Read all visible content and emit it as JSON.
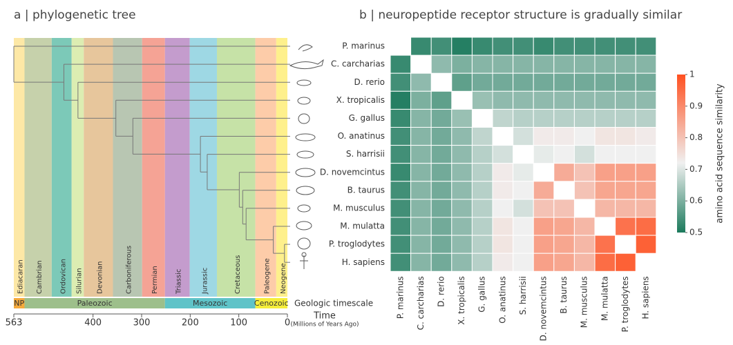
{
  "chart_data": [
    {
      "type": "phylogeny",
      "title": "a | phylogenetic tree",
      "xlabel": "Time",
      "xlabel_note": "(Millions of Years Ago)",
      "xlim": [
        563,
        0
      ],
      "xticks": [
        563,
        400,
        300,
        200,
        100,
        0
      ],
      "divergence_ages": [
        563,
        460,
        431,
        353,
        318,
        179,
        165,
        99,
        92,
        85,
        29,
        6
      ],
      "periods": [
        {
          "name": "Ediacaran",
          "start": 563,
          "end": 541,
          "color": "#fde8a6"
        },
        {
          "name": "Cambrian",
          "start": 541,
          "end": 485,
          "color": "#c6d1ab"
        },
        {
          "name": "Ordovican",
          "start": 485,
          "end": 444,
          "color": "#7cc9b8"
        },
        {
          "name": "Silurian",
          "start": 444,
          "end": 419,
          "color": "#dcedb2"
        },
        {
          "name": "Devonian",
          "start": 419,
          "end": 359,
          "color": "#e7c69c"
        },
        {
          "name": "Carboniferous",
          "start": 359,
          "end": 299,
          "color": "#b8c6b2"
        },
        {
          "name": "Permian",
          "start": 299,
          "end": 252,
          "color": "#f5a395"
        },
        {
          "name": "Triassic",
          "start": 252,
          "end": 201,
          "color": "#c49ccd"
        },
        {
          "name": "Jurassic",
          "start": 201,
          "end": 145,
          "color": "#9ed8e4"
        },
        {
          "name": "Cretaceous",
          "start": 145,
          "end": 66,
          "color": "#c6e2a7"
        },
        {
          "name": "Paleogene",
          "start": 66,
          "end": 23,
          "color": "#fdcca9"
        },
        {
          "name": "Neogene",
          "start": 23,
          "end": 0,
          "color": "#fef08c"
        }
      ],
      "eras_label": "Geologic timescale",
      "eras": [
        {
          "name": "NP",
          "start": 563,
          "end": 541,
          "color": "#f5a93b"
        },
        {
          "name": "Paleozoic",
          "start": 541,
          "end": 252,
          "color": "#9dbf8b"
        },
        {
          "name": "Mesozoic",
          "start": 252,
          "end": 66,
          "color": "#5fc3c8"
        },
        {
          "name": "Cenozoic",
          "start": 66,
          "end": 0,
          "color": "#f5ee3a"
        }
      ]
    },
    {
      "type": "heatmap",
      "title": "b | neuropeptide receptor structure is gradually similar",
      "categories": [
        "P. marinus",
        "C. carcharias",
        "D. rerio",
        "X. tropicalis",
        "G. gallus",
        "O. anatinus",
        "S. harrisii",
        "D. novemcintus",
        "B. taurus",
        "M. musculus",
        "M. mulatta",
        "P. troglodytes",
        "H. sapiens"
      ],
      "values": [
        [
          null,
          0.53,
          0.54,
          0.51,
          0.53,
          0.54,
          0.54,
          0.53,
          0.54,
          0.54,
          0.54,
          0.54,
          0.54
        ],
        [
          0.53,
          null,
          0.62,
          0.6,
          0.61,
          0.61,
          0.61,
          0.61,
          0.61,
          0.61,
          0.61,
          0.61,
          0.61
        ],
        [
          0.54,
          0.62,
          null,
          0.57,
          0.59,
          0.59,
          0.59,
          0.59,
          0.59,
          0.59,
          0.59,
          0.59,
          0.59
        ],
        [
          0.51,
          0.6,
          0.57,
          null,
          0.63,
          0.62,
          0.62,
          0.62,
          0.62,
          0.62,
          0.62,
          0.62,
          0.62
        ],
        [
          0.53,
          0.61,
          0.59,
          0.63,
          null,
          0.67,
          0.66,
          0.66,
          0.66,
          0.66,
          0.66,
          0.66,
          0.66
        ],
        [
          0.54,
          0.61,
          0.59,
          0.62,
          0.67,
          null,
          0.69,
          0.73,
          0.73,
          0.72,
          0.74,
          0.74,
          0.73
        ],
        [
          0.54,
          0.61,
          0.59,
          0.62,
          0.66,
          0.69,
          null,
          0.71,
          0.72,
          0.69,
          0.72,
          0.72,
          0.72
        ],
        [
          0.53,
          0.61,
          0.59,
          0.62,
          0.66,
          0.73,
          0.71,
          null,
          0.84,
          0.8,
          0.86,
          0.86,
          0.86
        ],
        [
          0.54,
          0.61,
          0.59,
          0.62,
          0.66,
          0.73,
          0.72,
          0.84,
          null,
          0.8,
          0.85,
          0.85,
          0.85
        ],
        [
          0.54,
          0.61,
          0.59,
          0.62,
          0.66,
          0.72,
          0.69,
          0.8,
          0.8,
          null,
          0.82,
          0.82,
          0.82
        ],
        [
          0.54,
          0.61,
          0.59,
          0.62,
          0.66,
          0.74,
          0.72,
          0.86,
          0.85,
          0.82,
          null,
          0.94,
          0.95
        ],
        [
          0.54,
          0.61,
          0.59,
          0.62,
          0.66,
          0.74,
          0.72,
          0.86,
          0.85,
          0.82,
          0.94,
          null,
          0.97
        ],
        [
          0.54,
          0.61,
          0.59,
          0.62,
          0.66,
          0.73,
          0.72,
          0.86,
          0.85,
          0.82,
          0.95,
          0.97,
          null
        ]
      ],
      "zlim": [
        0.5,
        1
      ],
      "zticks": [
        0.5,
        0.6,
        0.7,
        0.8,
        0.9,
        1
      ],
      "colorbar_label": "amino acid sequence similarity",
      "colormap": [
        {
          "value": 0.5,
          "color": "#1b7a5c"
        },
        {
          "value": 0.72,
          "color": "#f0f0f0"
        },
        {
          "value": 1,
          "color": "#ff5020"
        }
      ]
    }
  ]
}
